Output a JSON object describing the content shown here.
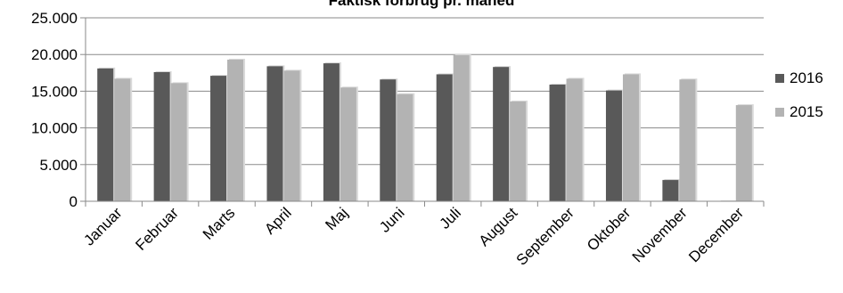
{
  "chart_data": {
    "type": "bar",
    "title": "Faktisk forbrug pr. måned",
    "xlabel": "",
    "ylabel": "",
    "ylim": [
      0,
      25000
    ],
    "yticks": [
      0,
      5000,
      10000,
      15000,
      20000,
      25000
    ],
    "ytick_labels": [
      "0",
      "5.000",
      "10.000",
      "15.000",
      "20.000",
      "25.000"
    ],
    "grid": true,
    "legend_position": "right",
    "categories": [
      "Januar",
      "Februar",
      "Marts",
      "April",
      "Maj",
      "Juni",
      "Juli",
      "August",
      "September",
      "Oktober",
      "November",
      "December"
    ],
    "series": [
      {
        "name": "2016",
        "color": "#595959",
        "values": [
          18100,
          17600,
          17100,
          18400,
          18800,
          16600,
          17300,
          18300,
          15900,
          15100,
          2900,
          0
        ]
      },
      {
        "name": "2015",
        "color": "#b3b3b3",
        "values": [
          16700,
          16100,
          19300,
          17800,
          15500,
          14600,
          19900,
          13600,
          16700,
          17300,
          16600,
          13100
        ]
      }
    ]
  }
}
